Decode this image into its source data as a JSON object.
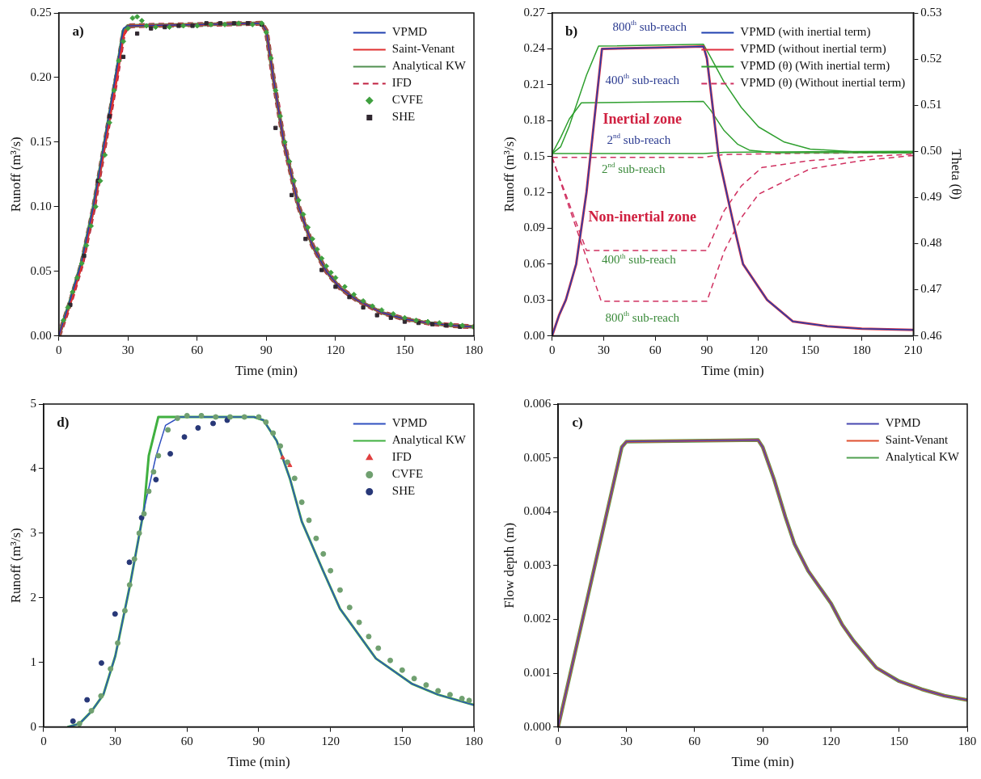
{
  "chart_data": [
    {
      "type": "line",
      "xlabel": "Time (min)",
      "ylabel": "Runoff (m³/s)",
      "xlim": [
        0,
        180
      ],
      "xticks": [
        0,
        30,
        60,
        90,
        120,
        150,
        180
      ],
      "ylim": [
        0,
        0.25
      ],
      "yticks": [
        {
          "value": 0,
          "label": "0.00"
        },
        {
          "value": 0.05,
          "label": "0.05"
        },
        {
          "value": 0.1,
          "label": "0.10"
        },
        {
          "value": 0.15,
          "label": "0.15"
        },
        {
          "value": 0.2,
          "label": "0.20"
        },
        {
          "value": 0.25,
          "label": "0.25"
        }
      ],
      "legend": "top right",
      "annotations": [
        "a)"
      ],
      "series": [
        {
          "name": "VPMD",
          "color": "#2040b0",
          "type": "line",
          "x": [
            0,
            5,
            10,
            15,
            20,
            25,
            28,
            30,
            60,
            88,
            90,
            93,
            97.6,
            104,
            110,
            116,
            122,
            129,
            140,
            150,
            160,
            170,
            180
          ],
          "values": [
            0,
            0.028,
            0.058,
            0.1,
            0.152,
            0.205,
            0.238,
            0.24,
            0.241,
            0.242,
            0.236,
            0.2,
            0.15,
            0.1,
            0.07,
            0.05,
            0.037,
            0.028,
            0.018,
            0.013,
            0.01,
            0.008,
            0.007
          ]
        },
        {
          "name": "Saint-Venant",
          "color": "#e03030",
          "type": "line",
          "x": [
            0,
            5,
            10,
            15,
            20,
            25,
            28,
            30,
            60,
            88,
            90,
            93,
            97.6,
            104,
            110,
            116,
            122,
            129,
            140,
            150,
            160,
            170,
            180
          ],
          "values": [
            0,
            0.025,
            0.055,
            0.097,
            0.148,
            0.198,
            0.232,
            0.24,
            0.241,
            0.242,
            0.236,
            0.2,
            0.15,
            0.1,
            0.07,
            0.05,
            0.037,
            0.028,
            0.018,
            0.013,
            0.01,
            0.008,
            0.007
          ]
        },
        {
          "name": "Analytical KW",
          "color": "#509050",
          "type": "line",
          "x": [
            0,
            5,
            10,
            15,
            20,
            25,
            28,
            30,
            60,
            88,
            90,
            93,
            97.6,
            104,
            110,
            116,
            122,
            129,
            140,
            150,
            160,
            170,
            180
          ],
          "values": [
            0,
            0.027,
            0.057,
            0.099,
            0.15,
            0.202,
            0.236,
            0.24,
            0.241,
            0.242,
            0.236,
            0.2,
            0.15,
            0.1,
            0.07,
            0.05,
            0.037,
            0.028,
            0.018,
            0.013,
            0.01,
            0.008,
            0.007
          ]
        },
        {
          "name": "IFD",
          "color": "#c02040",
          "type": "line",
          "line_style": "dashed",
          "x": [
            0,
            5,
            10,
            15,
            20,
            25,
            28,
            30,
            60,
            88,
            90,
            93,
            97.6,
            104,
            110,
            116,
            122,
            129,
            140,
            150,
            160,
            170,
            180
          ],
          "values": [
            0,
            0.026,
            0.056,
            0.098,
            0.149,
            0.2,
            0.234,
            0.24,
            0.241,
            0.242,
            0.236,
            0.2,
            0.15,
            0.1,
            0.07,
            0.05,
            0.037,
            0.028,
            0.018,
            0.013,
            0.01,
            0.008,
            0.007
          ]
        },
        {
          "name": "CVFE",
          "color": "#40a040",
          "type": "scatter",
          "marker": "diamond",
          "x": [
            2,
            4,
            6,
            8,
            10,
            12,
            14,
            16,
            18,
            20,
            22,
            24,
            26,
            28,
            30,
            32,
            34,
            36,
            38,
            42,
            48,
            54,
            60,
            66,
            72,
            78,
            84,
            88,
            90,
            92,
            94,
            96,
            98,
            100,
            102,
            104,
            106,
            108,
            110,
            112,
            114,
            116,
            118,
            120,
            124,
            128,
            132,
            136,
            140,
            145,
            150,
            155,
            160,
            165,
            170,
            175,
            180
          ],
          "values": [
            0.012,
            0.022,
            0.034,
            0.045,
            0.056,
            0.07,
            0.085,
            0.1,
            0.12,
            0.14,
            0.165,
            0.19,
            0.213,
            0.228,
            0.238,
            0.246,
            0.247,
            0.244,
            0.24,
            0.239,
            0.239,
            0.24,
            0.24,
            0.241,
            0.241,
            0.242,
            0.241,
            0.242,
            0.235,
            0.215,
            0.19,
            0.17,
            0.15,
            0.135,
            0.12,
            0.105,
            0.094,
            0.084,
            0.075,
            0.067,
            0.06,
            0.054,
            0.049,
            0.045,
            0.038,
            0.032,
            0.027,
            0.023,
            0.02,
            0.017,
            0.014,
            0.012,
            0.011,
            0.01,
            0.009,
            0.008,
            0.007
          ]
        },
        {
          "name": "SHE",
          "color": "#302830",
          "type": "scatter",
          "marker": "square",
          "x": [
            5,
            11,
            17,
            22,
            28,
            34,
            40,
            46,
            52,
            58,
            64,
            70,
            76,
            82,
            88,
            94,
            101,
            107,
            114,
            120,
            126,
            132,
            138,
            144,
            150,
            156,
            162,
            168,
            174
          ],
          "values": [
            0.024,
            0.062,
            0.12,
            0.17,
            0.216,
            0.234,
            0.238,
            0.239,
            0.24,
            0.24,
            0.242,
            0.242,
            0.242,
            0.242,
            0.241,
            0.161,
            0.109,
            0.075,
            0.051,
            0.038,
            0.03,
            0.022,
            0.016,
            0.014,
            0.011,
            0.01,
            0.009,
            0.008,
            0.007
          ]
        }
      ]
    },
    {
      "type": "line",
      "xlabel": "Time (min)",
      "ylabel": "Runoff (m³/s)",
      "y2label": "Theta (θ)",
      "xlim": [
        0,
        210
      ],
      "xticks": [
        0,
        30,
        60,
        90,
        120,
        150,
        180,
        210
      ],
      "ylim": [
        0,
        0.27
      ],
      "yticks": [
        {
          "value": 0,
          "label": "0.00"
        },
        {
          "value": 0.03,
          "label": "0.03"
        },
        {
          "value": 0.06,
          "label": "0.06"
        },
        {
          "value": 0.09,
          "label": "0.09"
        },
        {
          "value": 0.12,
          "label": "0.12"
        },
        {
          "value": 0.15,
          "label": "0.15"
        },
        {
          "value": 0.18,
          "label": "0.18"
        },
        {
          "value": 0.21,
          "label": "0.21"
        },
        {
          "value": 0.24,
          "label": "0.24"
        },
        {
          "value": 0.27,
          "label": "0.27"
        }
      ],
      "y2lim": [
        0.46,
        0.53
      ],
      "y2ticks": [
        0.46,
        0.47,
        0.48,
        0.49,
        {
          "value": 0.5,
          "label": "0.50"
        },
        0.51,
        0.52,
        0.53
      ],
      "legend": "top right",
      "annotations": [
        "b)",
        "800$^{th}$ sub-reach",
        "400$^{th}$ sub-reach",
        "Inertial zone",
        "2$^{nd}$ sub-reach",
        "2$^{nd}$ sub-reach",
        "Non-inertial zone",
        "400$^{th}$ sub-reach",
        "800$^{th}$ sub-reach"
      ],
      "series": [
        {
          "name": "VPMD (with inertial term)",
          "color": "#2040b0",
          "type": "line",
          "x": [
            0,
            4,
            8,
            14,
            20,
            24.5,
            29,
            60,
            88,
            90,
            96.8,
            106,
            111,
            125,
            140,
            160,
            180,
            210
          ],
          "values": [
            0,
            0.017,
            0.03,
            0.06,
            0.12,
            0.18,
            0.24,
            0.241,
            0.242,
            0.232,
            0.15,
            0.09,
            0.06,
            0.03,
            0.012,
            0.008,
            0.006,
            0.005
          ]
        },
        {
          "name": "VPMD (without inertial term)",
          "color": "#e03040",
          "type": "line",
          "x": [
            0,
            4,
            8,
            14,
            20,
            24.5,
            29,
            60,
            88,
            90,
            96.8,
            106,
            111,
            125,
            140,
            160,
            180,
            210
          ],
          "values": [
            0,
            0.017,
            0.03,
            0.06,
            0.12,
            0.18,
            0.24,
            0.241,
            0.242,
            0.232,
            0.15,
            0.09,
            0.06,
            0.03,
            0.012,
            0.008,
            0.006,
            0.005
          ]
        },
        {
          "name": "VPMD (θ) (With inertial term)",
          "color": "#30a030",
          "type": "line",
          "axis": "y2",
          "x": [
            0,
            5,
            10,
            15,
            20,
            27,
            88,
            92,
            100,
            110,
            120,
            135,
            150,
            180,
            210
          ],
          "values": [
            0.4995,
            0.501,
            0.5055,
            0.511,
            0.5165,
            0.5228,
            0.5232,
            0.5205,
            0.515,
            0.5095,
            0.5053,
            0.502,
            0.5005,
            0.4998,
            0.4997
          ]
        },
        {
          "color": "#30a030",
          "type": "line",
          "axis": "y2",
          "x": [
            0,
            5,
            10,
            17,
            88,
            92,
            100,
            108,
            115,
            130,
            210
          ],
          "values": [
            0.4995,
            0.503,
            0.507,
            0.5105,
            0.5108,
            0.509,
            0.5045,
            0.5015,
            0.5002,
            0.4997,
            0.4997
          ]
        },
        {
          "color": "#30a030",
          "type": "line",
          "axis": "y2",
          "x": [
            0,
            88,
            100,
            150,
            210
          ],
          "values": [
            0.4995,
            0.4995,
            0.4998,
            0.4999,
            0.5
          ]
        },
        {
          "name": "VPMD (θ) (Without inertial term)",
          "color": "#d03060",
          "type": "line",
          "axis": "y2",
          "line_style": "dashed",
          "x": [
            0,
            88,
            100,
            150,
            210
          ],
          "values": [
            0.4987,
            0.4987,
            0.4993,
            0.4996,
            0.4997
          ]
        },
        {
          "color": "#d03060",
          "type": "line",
          "axis": "y2",
          "line_style": "dashed",
          "x": [
            0,
            20,
            90,
            100,
            110,
            122,
            150,
            180,
            210
          ],
          "values": [
            0.4987,
            0.4785,
            0.4785,
            0.4871,
            0.4925,
            0.4965,
            0.498,
            0.4988,
            0.4994
          ]
        },
        {
          "color": "#d03060",
          "type": "line",
          "axis": "y2",
          "line_style": "dashed",
          "x": [
            0,
            28.6,
            90,
            100,
            110,
            120,
            150,
            180,
            210
          ],
          "values": [
            0.4987,
            0.4675,
            0.4675,
            0.4783,
            0.4856,
            0.4907,
            0.4962,
            0.498,
            0.4991
          ]
        }
      ]
    },
    {
      "type": "line",
      "xlabel": "Time (min)",
      "ylabel": "Runoff (m³/s)",
      "xlim": [
        0,
        180
      ],
      "xticks": [
        0,
        30,
        60,
        90,
        120,
        150,
        180
      ],
      "ylim": [
        0,
        5
      ],
      "yticks": [
        0,
        1,
        2,
        3,
        4,
        5
      ],
      "legend": "top right",
      "annotations": [
        "d)"
      ],
      "series": [
        {
          "name": "VPMD",
          "color": "#3050c0",
          "type": "line",
          "x": [
            10,
            15,
            20,
            25,
            30,
            36,
            42,
            47,
            51,
            57,
            88,
            92,
            97.5,
            103,
            108,
            117,
            124,
            139,
            154,
            165,
            180
          ],
          "values": [
            0,
            0.05,
            0.24,
            0.5,
            1.1,
            2.17,
            3.37,
            4.19,
            4.67,
            4.8,
            4.8,
            4.75,
            4.43,
            3.85,
            3.18,
            2.41,
            1.83,
            1.06,
            0.67,
            0.5,
            0.34
          ]
        },
        {
          "name": "Analytical KW",
          "color": "#40b040",
          "type": "line",
          "x": [
            10,
            15,
            20,
            25,
            30,
            36,
            42,
            44,
            48,
            88,
            92,
            97.5,
            103,
            108,
            117,
            124,
            139,
            154,
            165,
            180
          ],
          "values": [
            0,
            0.05,
            0.24,
            0.5,
            1.1,
            2.17,
            3.37,
            4.2,
            4.8,
            4.8,
            4.75,
            4.43,
            3.85,
            3.18,
            2.41,
            1.83,
            1.06,
            0.67,
            0.5,
            0.34
          ]
        },
        {
          "name": "IFD",
          "color": "#e04040",
          "type": "scatter",
          "marker": "triangle",
          "x": [
            100,
            103
          ],
          "values": [
            4.17,
            4.05
          ]
        },
        {
          "name": "CVFE",
          "color": "#70a070",
          "type": "scatter",
          "marker": "circle",
          "x": [
            15,
            20,
            24,
            28,
            31,
            34,
            36,
            38,
            40,
            42,
            44,
            46,
            48,
            52,
            56,
            60,
            66,
            72,
            78,
            84,
            90,
            93,
            96,
            99,
            102,
            105,
            108,
            111,
            114,
            117,
            120,
            124,
            128,
            132,
            136,
            140,
            145,
            150,
            155,
            160,
            165,
            170,
            175,
            178
          ],
          "values": [
            0.05,
            0.25,
            0.48,
            0.9,
            1.3,
            1.8,
            2.2,
            2.6,
            3,
            3.3,
            3.65,
            3.95,
            4.2,
            4.6,
            4.78,
            4.82,
            4.82,
            4.8,
            4.8,
            4.8,
            4.8,
            4.72,
            4.55,
            4.35,
            4.1,
            3.85,
            3.48,
            3.2,
            2.92,
            2.68,
            2.42,
            2.12,
            1.85,
            1.62,
            1.4,
            1.22,
            1.03,
            0.88,
            0.75,
            0.65,
            0.56,
            0.5,
            0.44,
            0.41
          ]
        },
        {
          "name": "SHE",
          "color": "#283878",
          "type": "scatter",
          "marker": "circle",
          "x": [
            12.3,
            18.2,
            24.2,
            29.9,
            35.9,
            41,
            47,
            53,
            58.9,
            64.6,
            70.9,
            76.8
          ],
          "values": [
            0.09,
            0.42,
            0.99,
            1.75,
            2.55,
            3.24,
            3.83,
            4.23,
            4.49,
            4.63,
            4.7,
            4.75
          ]
        }
      ]
    },
    {
      "type": "line",
      "xlabel": "Time (min)",
      "ylabel": "Flow depth (m)",
      "xlim": [
        0,
        180
      ],
      "xticks": [
        0,
        30,
        60,
        90,
        120,
        150,
        180
      ],
      "ylim": [
        0,
        0.006
      ],
      "yticks": [
        {
          "value": 0,
          "label": "0.000"
        },
        {
          "value": 0.001,
          "label": "0.001"
        },
        {
          "value": 0.002,
          "label": "0.002"
        },
        {
          "value": 0.003,
          "label": "0.003"
        },
        {
          "value": 0.004,
          "label": "0.004"
        },
        {
          "value": 0.005,
          "label": "0.005"
        },
        {
          "value": 0.006,
          "label": "0.006"
        }
      ],
      "legend": "top right",
      "annotations": [
        "c)"
      ],
      "series": [
        {
          "name": "VPMD",
          "color": "#4848b0",
          "type": "line",
          "x": [
            0,
            28,
            30,
            88,
            90,
            95,
            100,
            104,
            110,
            115,
            120,
            125,
            130,
            140,
            150,
            160,
            170,
            180
          ],
          "values": [
            0,
            0.0052,
            0.0053,
            0.00533,
            0.0052,
            0.0046,
            0.0039,
            0.0034,
            0.0029,
            0.0026,
            0.0023,
            0.0019,
            0.0016,
            0.0011,
            0.00085,
            0.0007,
            0.00058,
            0.0005
          ]
        },
        {
          "name": "Saint-Venant",
          "color": "#e05030",
          "type": "line",
          "x": [
            0,
            28,
            30,
            88,
            90,
            95,
            100,
            104,
            110,
            115,
            120,
            125,
            130,
            140,
            150,
            160,
            170,
            180
          ],
          "values": [
            0,
            0.0052,
            0.0053,
            0.00533,
            0.0052,
            0.0046,
            0.0039,
            0.0034,
            0.0029,
            0.0026,
            0.0023,
            0.0019,
            0.0016,
            0.0011,
            0.00085,
            0.0007,
            0.00058,
            0.0005
          ]
        },
        {
          "name": "Analytical KW",
          "color": "#50a050",
          "type": "line",
          "x": [
            0,
            28,
            30,
            88,
            90,
            95,
            100,
            104,
            110,
            115,
            120,
            125,
            130,
            140,
            150,
            160,
            170,
            180
          ],
          "values": [
            0,
            0.0052,
            0.0053,
            0.00533,
            0.0052,
            0.0046,
            0.0039,
            0.0034,
            0.0029,
            0.0026,
            0.0023,
            0.0019,
            0.0016,
            0.0011,
            0.00085,
            0.0007,
            0.00058,
            0.0005
          ]
        }
      ]
    }
  ]
}
